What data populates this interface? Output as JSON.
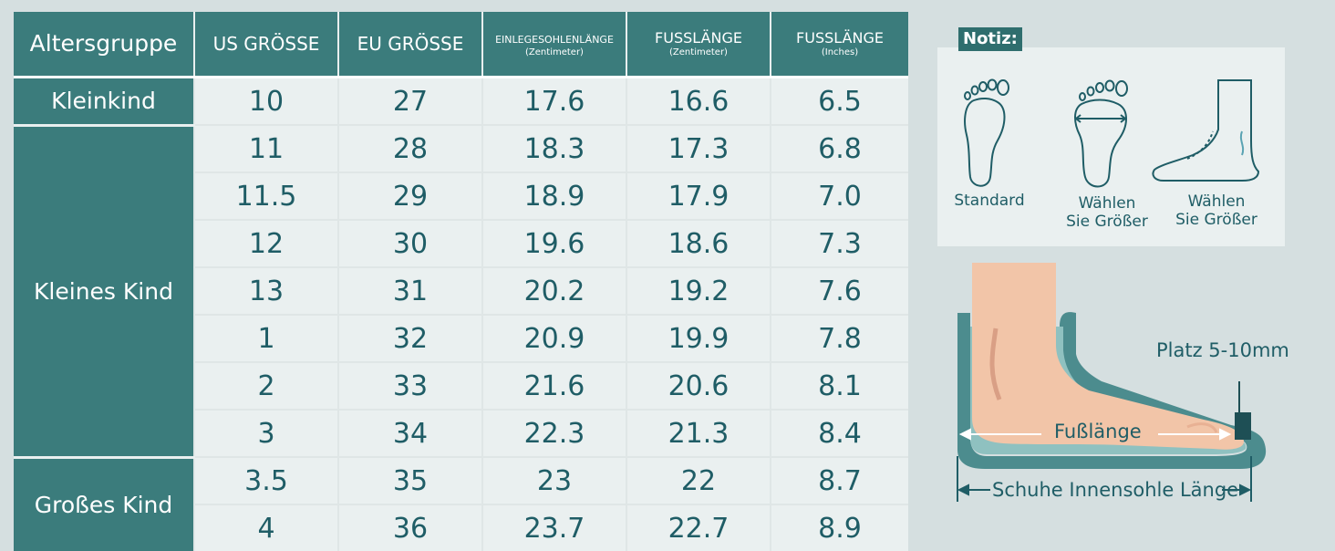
{
  "table": {
    "headers": [
      {
        "main": "Altersgruppe",
        "sub": ""
      },
      {
        "main": "US GRÖSSE",
        "sub": ""
      },
      {
        "main": "EU GRÖSSE",
        "sub": ""
      },
      {
        "main": "EINLEGESOHLENLÄNGE",
        "sub": "(Zentimeter)"
      },
      {
        "main": "FUSSLÄNGE",
        "sub": "(Zentimeter)"
      },
      {
        "main": "FUSSLÄNGE",
        "sub": "(Inches)"
      }
    ],
    "groups": [
      "Kleinkind",
      "Kleines Kind",
      "Großes Kind"
    ],
    "rows": [
      [
        "10",
        "27",
        "17.6",
        "16.6",
        "6.5"
      ],
      [
        "11",
        "28",
        "18.3",
        "17.3",
        "6.8"
      ],
      [
        "11.5",
        "29",
        "18.9",
        "17.9",
        "7.0"
      ],
      [
        "12",
        "30",
        "19.6",
        "18.6",
        "7.3"
      ],
      [
        "13",
        "31",
        "20.2",
        "19.2",
        "7.6"
      ],
      [
        "1",
        "32",
        "20.9",
        "19.9",
        "7.8"
      ],
      [
        "2",
        "33",
        "21.6",
        "20.6",
        "8.1"
      ],
      [
        "3",
        "34",
        "22.3",
        "21.3",
        "8.4"
      ],
      [
        "3.5",
        "35",
        "23",
        "22",
        "8.7"
      ],
      [
        "4",
        "36",
        "23.7",
        "22.7",
        "8.9"
      ]
    ]
  },
  "note": {
    "tag": "Notiz:",
    "labels": [
      "Standard",
      "Wählen\nSie Größer",
      "Wählen\nSie Größer"
    ],
    "icons": [
      "standard-foot-icon",
      "wide-foot-icon",
      "high-instep-foot-icon"
    ]
  },
  "diagram": {
    "space_label": "Platz 5-10mm",
    "foot_length_label": "Fußlänge",
    "insole_length_label": "Schuhe Innensohle Länge"
  },
  "colors": {
    "teal": "#3b7c7c",
    "text": "#1f5d66",
    "background": "#d5dfe0",
    "cell": "#eaf0f0"
  }
}
